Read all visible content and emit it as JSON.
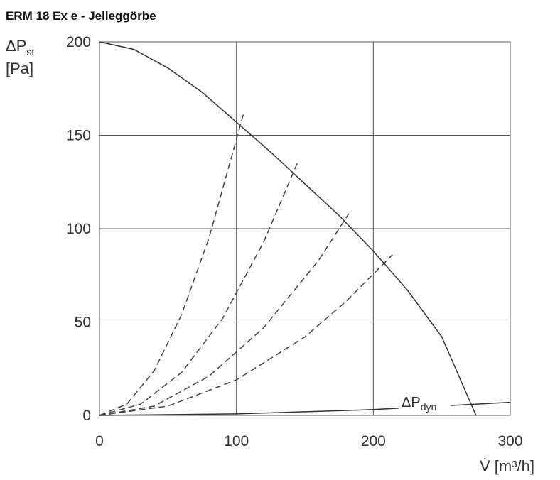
{
  "chart_data": {
    "type": "line",
    "title": "ERM 18 Ex e - Jelleggörbe",
    "y_label": {
      "symbol": "ΔP",
      "sub": "st",
      "unit": "[Pa]"
    },
    "x_label": "V̇ [m³/h]",
    "annotation": {
      "symbol": "ΔP",
      "sub": "dyn"
    },
    "xlim": [
      0,
      300
    ],
    "ylim": [
      0,
      200
    ],
    "xticks": [
      0,
      100,
      200,
      300
    ],
    "yticks": [
      0,
      50,
      100,
      150,
      200
    ],
    "grid": true,
    "series": [
      {
        "color": "#333333",
        "dash": false,
        "x": [
          0,
          25,
          50,
          75,
          100,
          125,
          150,
          175,
          200,
          225,
          250,
          275
        ],
        "values": [
          200,
          196,
          186,
          173,
          157,
          141,
          124,
          107,
          88,
          67,
          42,
          0
        ]
      },
      {
        "color": "#444444",
        "dash": true,
        "x": [
          0,
          20,
          40,
          60,
          80,
          105
        ],
        "values": [
          0,
          6,
          24,
          54,
          95,
          161
        ]
      },
      {
        "color": "#444444",
        "dash": true,
        "x": [
          0,
          30,
          60,
          90,
          120,
          145
        ],
        "values": [
          0,
          6,
          23,
          52,
          93,
          136
        ]
      },
      {
        "color": "#444444",
        "dash": true,
        "x": [
          0,
          40,
          80,
          120,
          160,
          182
        ],
        "values": [
          0,
          5,
          21,
          47,
          83,
          108
        ]
      },
      {
        "color": "#444444",
        "dash": true,
        "x": [
          0,
          50,
          100,
          150,
          180,
          214
        ],
        "values": [
          0,
          5,
          19,
          42,
          61,
          86
        ]
      },
      {
        "color": "#333333",
        "dash": false,
        "x": [
          0,
          100,
          200,
          300
        ],
        "values": [
          0,
          0.8,
          3.1,
          7
        ]
      }
    ]
  }
}
